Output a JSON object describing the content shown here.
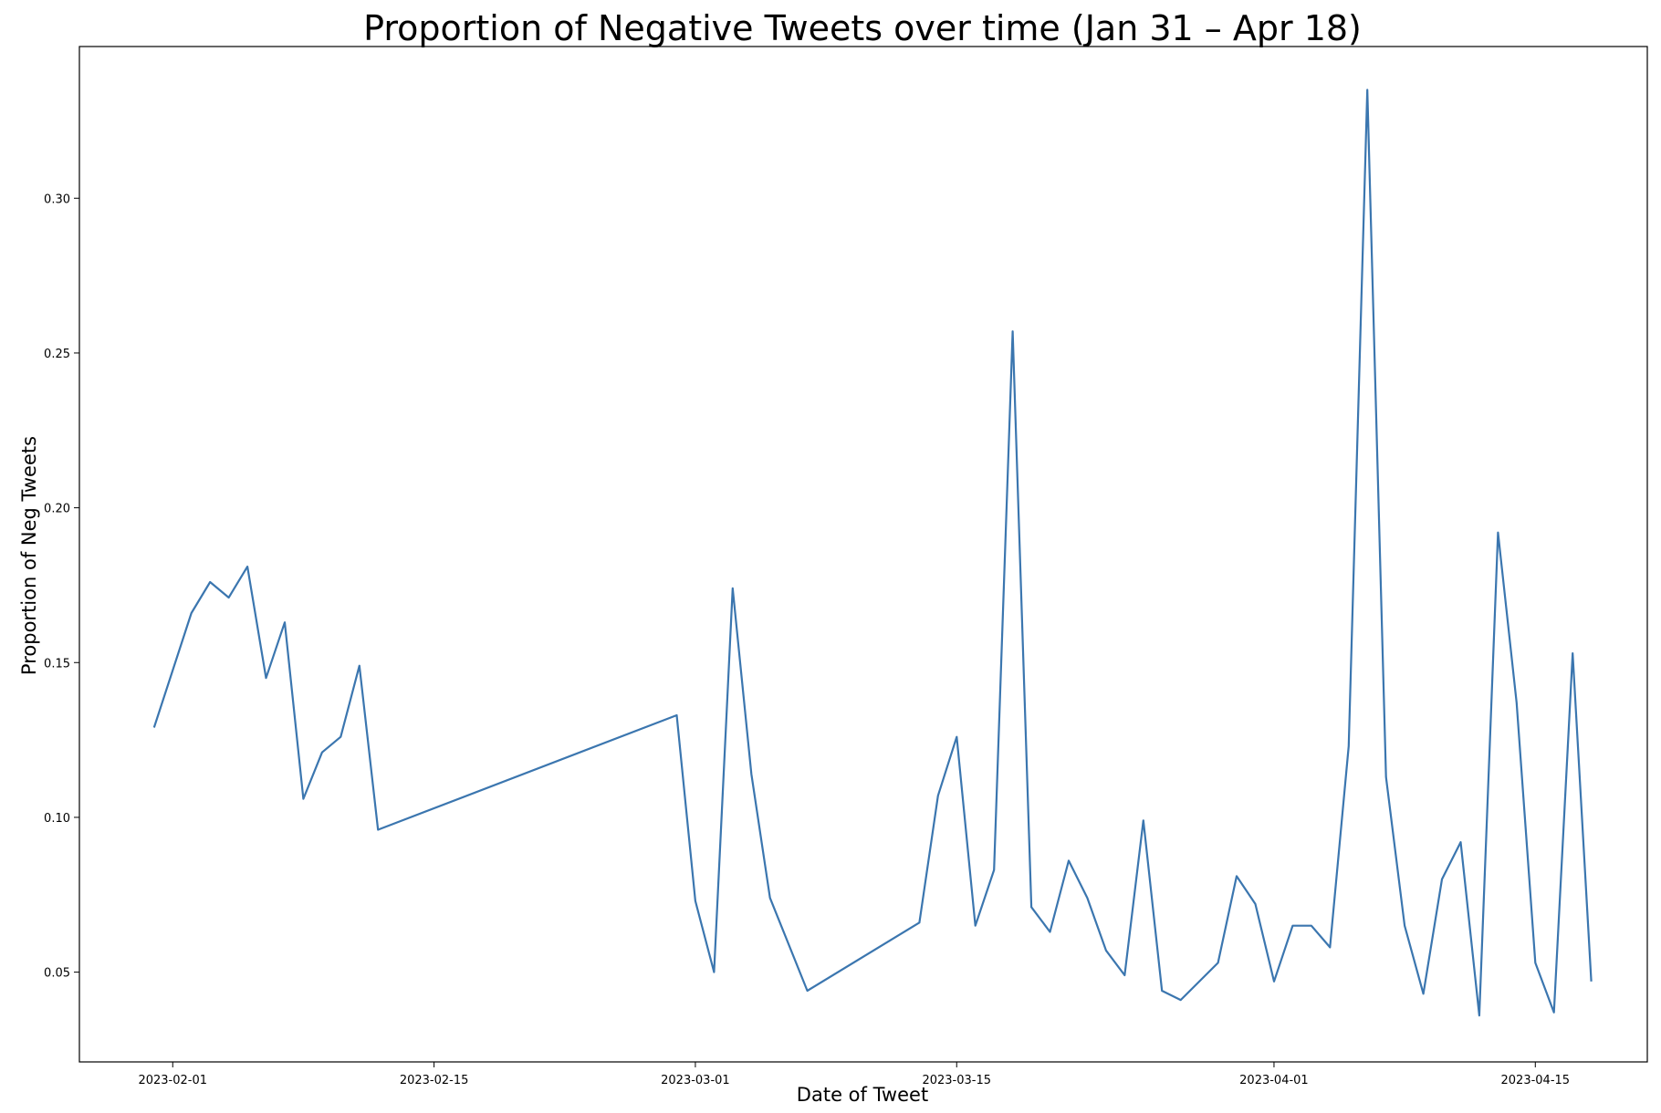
{
  "chart_data": {
    "type": "line",
    "title": "Proportion of Negative Tweets over time (Jan 31 – Apr 18)",
    "xlabel": "Date of Tweet",
    "ylabel": "Proportion of Neg Tweets",
    "xlim": [
      "2023-01-27",
      "2023-04-21"
    ],
    "ylim": [
      0.021,
      0.349
    ],
    "x_ticks": [
      "2023-02-01",
      "2023-02-15",
      "2023-03-01",
      "2023-03-15",
      "2023-04-01",
      "2023-04-15"
    ],
    "y_ticks": [
      0.05,
      0.1,
      0.15,
      0.2,
      0.25,
      0.3
    ],
    "y_tick_labels": [
      "0.05",
      "0.10",
      "0.15",
      "0.20",
      "0.25",
      "0.30"
    ],
    "grid": false,
    "series": [
      {
        "color": "#3b76af",
        "points": [
          [
            "2023-01-31",
            0.129
          ],
          [
            "2023-02-02",
            0.166
          ],
          [
            "2023-02-03",
            0.176
          ],
          [
            "2023-02-04",
            0.171
          ],
          [
            "2023-02-05",
            0.181
          ],
          [
            "2023-02-06",
            0.145
          ],
          [
            "2023-02-07",
            0.163
          ],
          [
            "2023-02-08",
            0.106
          ],
          [
            "2023-02-09",
            0.121
          ],
          [
            "2023-02-10",
            0.126
          ],
          [
            "2023-02-11",
            0.149
          ],
          [
            "2023-02-12",
            0.096
          ],
          [
            "2023-02-28",
            0.133
          ],
          [
            "2023-03-01",
            0.073
          ],
          [
            "2023-03-02",
            0.05
          ],
          [
            "2023-03-03",
            0.174
          ],
          [
            "2023-03-04",
            0.114
          ],
          [
            "2023-03-05",
            0.074
          ],
          [
            "2023-03-07",
            0.044
          ],
          [
            "2023-03-13",
            0.066
          ],
          [
            "2023-03-14",
            0.107
          ],
          [
            "2023-03-15",
            0.126
          ],
          [
            "2023-03-16",
            0.065
          ],
          [
            "2023-03-17",
            0.083
          ],
          [
            "2023-03-18",
            0.257
          ],
          [
            "2023-03-19",
            0.071
          ],
          [
            "2023-03-20",
            0.063
          ],
          [
            "2023-03-21",
            0.086
          ],
          [
            "2023-03-22",
            0.074
          ],
          [
            "2023-03-23",
            0.057
          ],
          [
            "2023-03-24",
            0.049
          ],
          [
            "2023-03-25",
            0.099
          ],
          [
            "2023-03-26",
            0.044
          ],
          [
            "2023-03-27",
            0.041
          ],
          [
            "2023-03-29",
            0.053
          ],
          [
            "2023-03-30",
            0.081
          ],
          [
            "2023-03-31",
            0.072
          ],
          [
            "2023-04-01",
            0.047
          ],
          [
            "2023-04-02",
            0.065
          ],
          [
            "2023-04-03",
            0.065
          ],
          [
            "2023-04-04",
            0.058
          ],
          [
            "2023-04-05",
            0.123
          ],
          [
            "2023-04-06",
            0.335
          ],
          [
            "2023-04-07",
            0.113
          ],
          [
            "2023-04-08",
            0.065
          ],
          [
            "2023-04-09",
            0.043
          ],
          [
            "2023-04-10",
            0.08
          ],
          [
            "2023-04-11",
            0.092
          ],
          [
            "2023-04-12",
            0.036
          ],
          [
            "2023-04-13",
            0.192
          ],
          [
            "2023-04-14",
            0.137
          ],
          [
            "2023-04-15",
            0.053
          ],
          [
            "2023-04-16",
            0.037
          ],
          [
            "2023-04-17",
            0.153
          ],
          [
            "2023-04-18",
            0.047
          ]
        ]
      }
    ]
  }
}
